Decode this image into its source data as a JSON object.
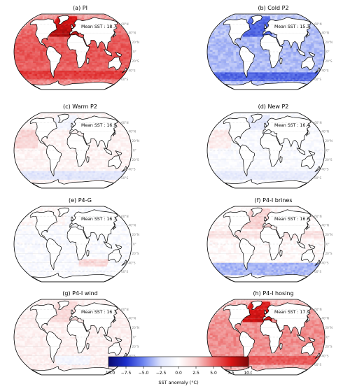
{
  "panels": [
    {
      "id": "a",
      "title": "(a) PI",
      "mean_label": "Mean SST : 18.7",
      "scheme": "pi"
    },
    {
      "id": "b",
      "title": "(b) Cold P2",
      "mean_label": "Mean SST : 15.3",
      "scheme": "cold"
    },
    {
      "id": "c",
      "title": "(c) Warm P2",
      "mean_label": "Mean SST : 16.9",
      "scheme": "warm"
    },
    {
      "id": "d",
      "title": "(d) New P2",
      "mean_label": "Mean SST : 16.4",
      "scheme": "new"
    },
    {
      "id": "e",
      "title": "(e) P4-G",
      "mean_label": "Mean SST : 16.7",
      "scheme": "p4g"
    },
    {
      "id": "f",
      "title": "(f) P4-I brines",
      "mean_label": "Mean SST : 16.6",
      "scheme": "brines"
    },
    {
      "id": "g",
      "title": "(g) P4-I wind",
      "mean_label": "Mean SST : 16.7",
      "scheme": "wind"
    },
    {
      "id": "h",
      "title": "(h) P4-I hosing",
      "mean_label": "Mean SST : 17.9",
      "scheme": "hosing"
    }
  ],
  "lat_labels": [
    "60°N",
    "40°N",
    "20°N",
    "0°",
    "20°S",
    "40°S",
    "60°S"
  ],
  "colorbar": {
    "ticks": [
      "−10.0",
      "−7.5",
      "−5.0",
      "−2.5",
      "0.0",
      "2.5",
      "5.0",
      "7.5",
      "10.0"
    ],
    "label": "SST anomaly (°C)",
    "colors": [
      "#0a0a6e",
      "#1c2ecb",
      "#6f86f0",
      "#dfe4fb",
      "#ffffff",
      "#f8d2d2",
      "#ec6a6a",
      "#d91414",
      "#7b0a0a"
    ]
  }
}
